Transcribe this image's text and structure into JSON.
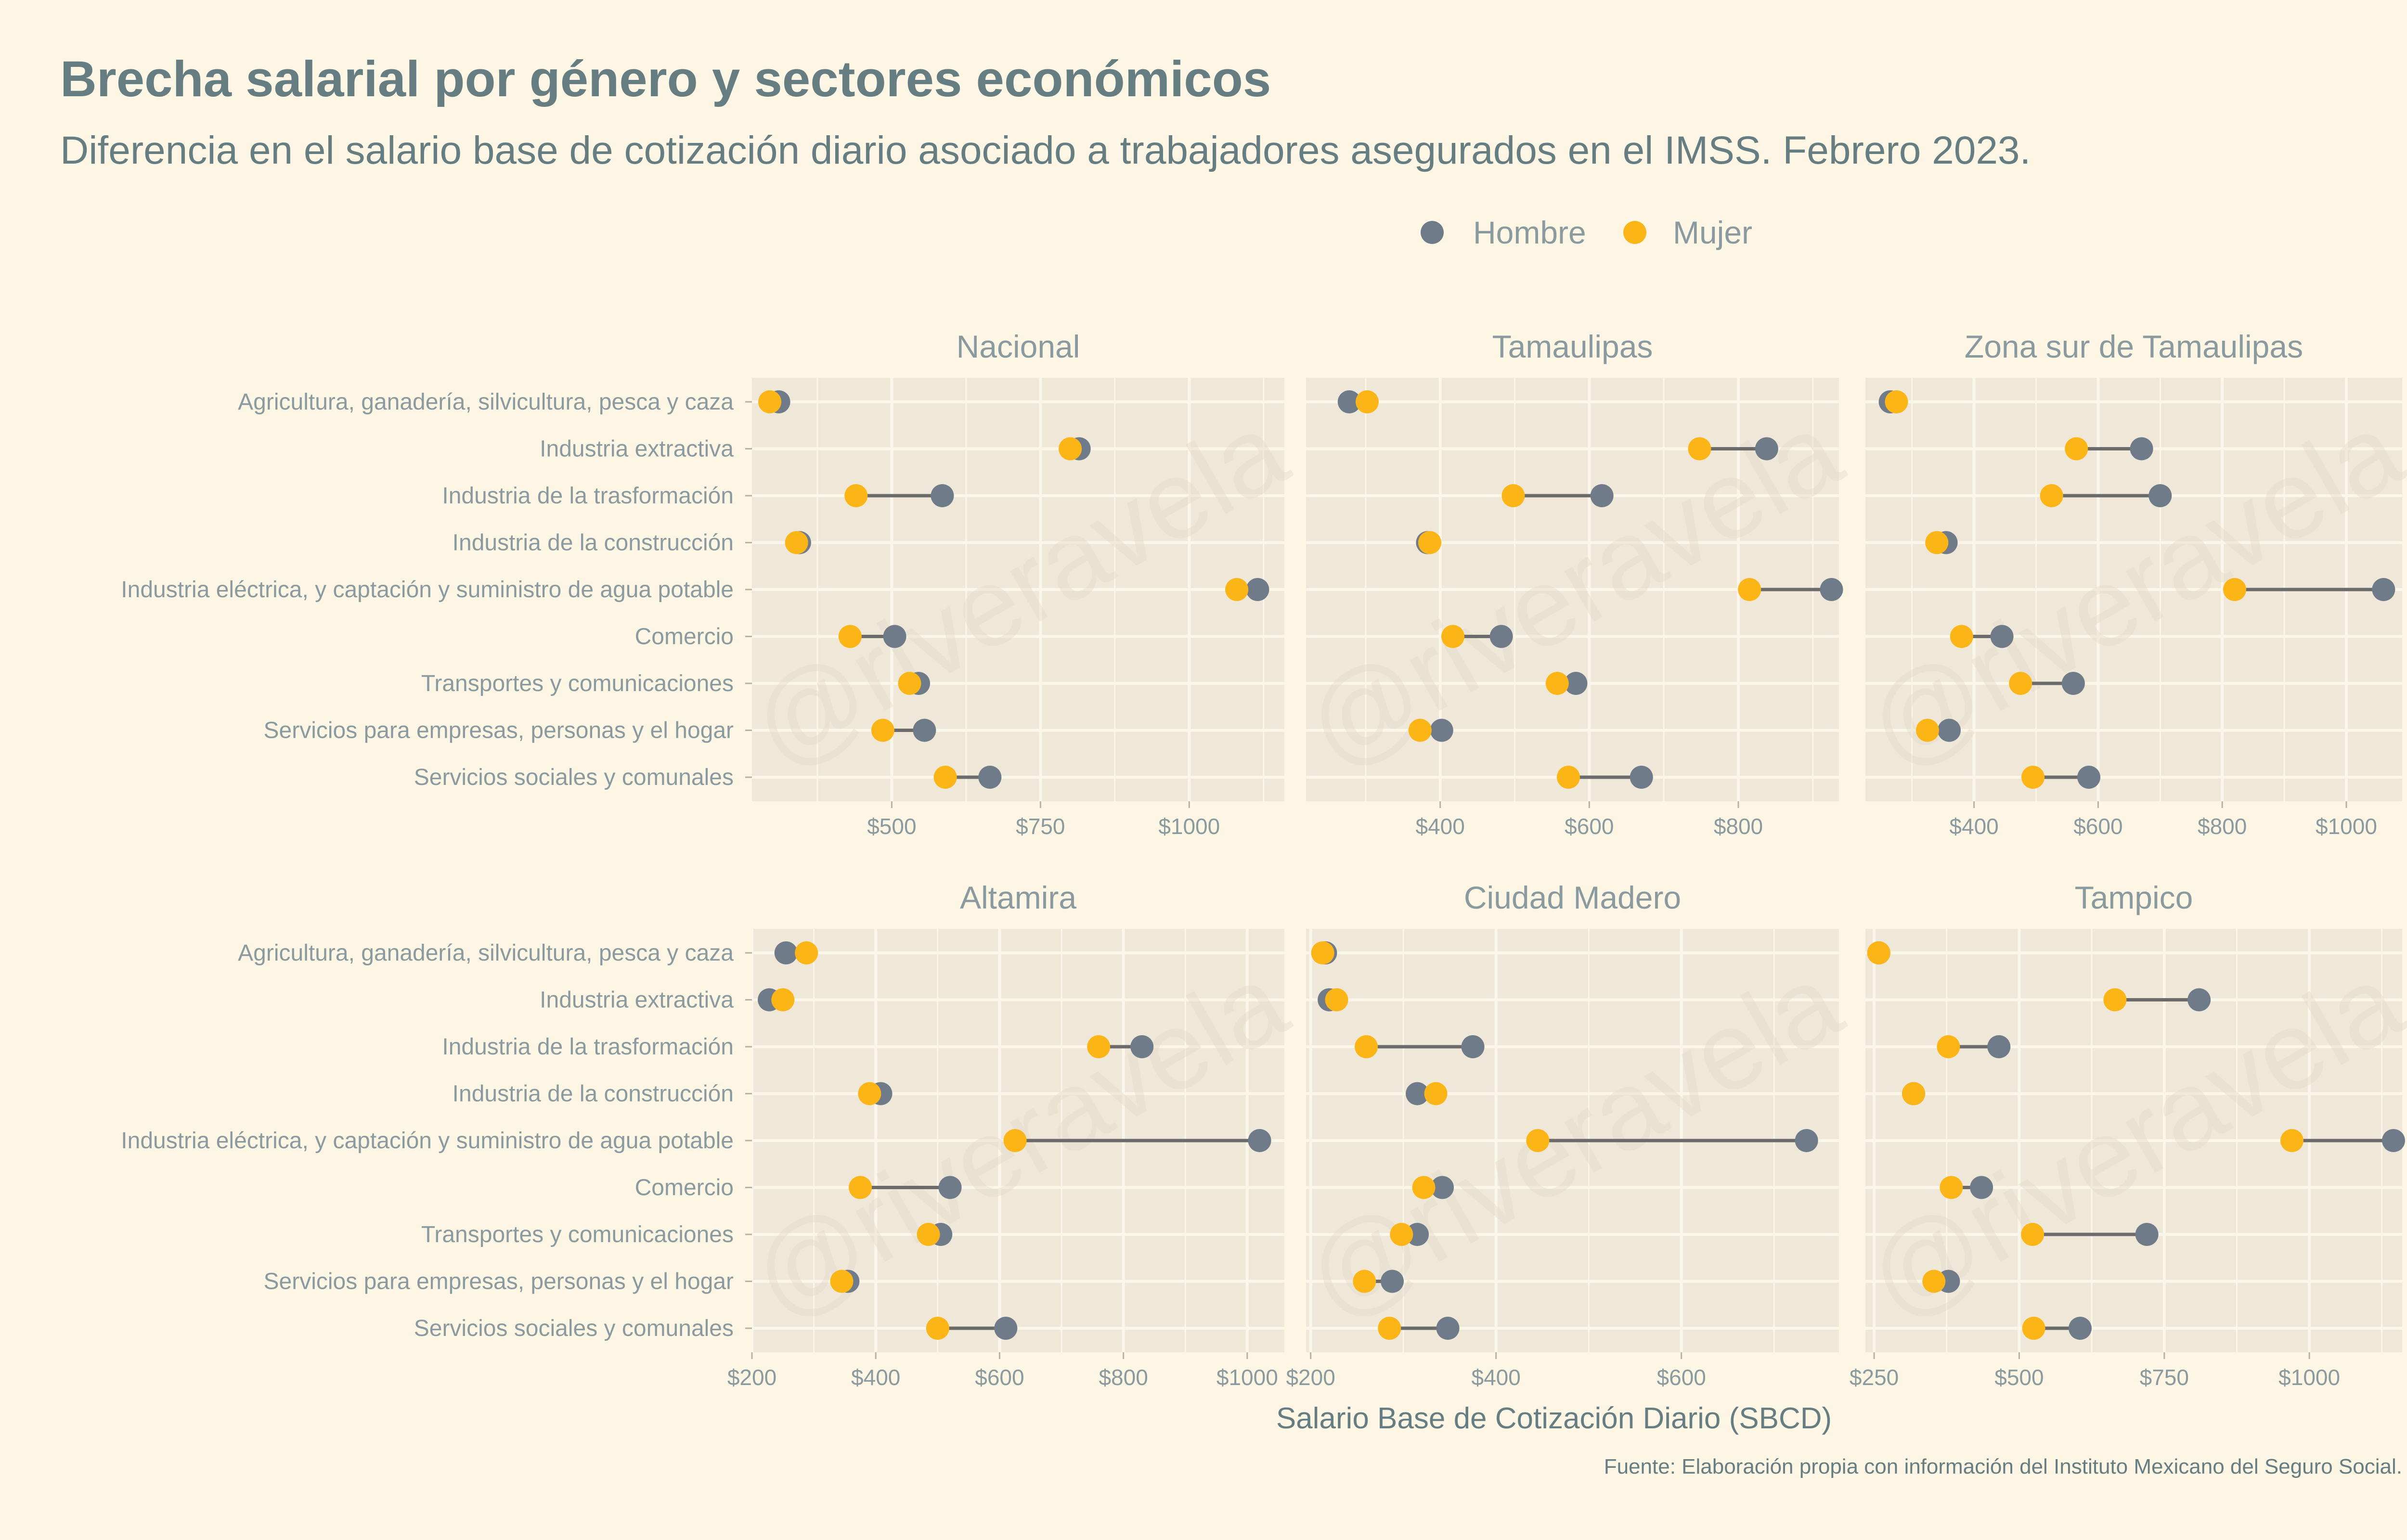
{
  "colors": {
    "background": "#fdf6e4",
    "panel": "#efe8d8",
    "grid": "#fbf6ea",
    "segment": "#6b6b6b",
    "hombre": "#707b8a",
    "mujer": "#fbb516",
    "text_dark": "#667d82",
    "text_light": "#8a9a9e"
  },
  "header": {
    "title": "Brecha salarial por género y sectores económicos",
    "subtitle": "Diferencia en el salario base de cotización diario asociado a trabajadores asegurados en el IMSS. Febrero 2023."
  },
  "legend": {
    "items": [
      {
        "label": "Hombre",
        "color": "#707b8a"
      },
      {
        "label": "Mujer",
        "color": "#fbb516"
      }
    ]
  },
  "watermark": "@riveravela",
  "xlabel": "Salario Base de Cotización Diario (SBCD)",
  "caption": "Fuente: Elaboración propia con información del Instituto Mexicano del Seguro Social.",
  "chart_data": {
    "type": "dumbbell",
    "categories": [
      "Agricultura, ganadería, silvicultura, pesca y caza",
      "Industria extractiva",
      "Industria de la trasformación",
      "Industria de la construcción",
      "Industria eléctrica, y captación y suministro de agua potable",
      "Comercio",
      "Transportes y comunicaciones",
      "Servicios para empresas, personas y el hogar",
      "Servicios sociales y comunales"
    ],
    "series_names": [
      "Hombre",
      "Mujer"
    ],
    "panels": [
      {
        "title": "Nacional",
        "xlim": [
          265,
          1160
        ],
        "ticks": [
          500,
          750,
          1000
        ],
        "tick_labels": [
          "$500",
          "$750",
          "$1000"
        ],
        "hombre": [
          310,
          815,
          585,
          345,
          1115,
          505,
          545,
          555,
          665
        ],
        "mujer": [
          295,
          800,
          440,
          340,
          1080,
          430,
          530,
          485,
          590
        ]
      },
      {
        "title": "Tamaulipas",
        "xlim": [
          220,
          935
        ],
        "ticks": [
          400,
          600,
          800
        ],
        "tick_labels": [
          "$400",
          "$600",
          "$800"
        ],
        "hombre": [
          278,
          838,
          617,
          383,
          925,
          482,
          582,
          402,
          670
        ],
        "mujer": [
          302,
          748,
          498,
          386,
          815,
          417,
          557,
          373,
          572
        ]
      },
      {
        "title": "Zona sur de Tamaulipas",
        "xlim": [
          225,
          1090
        ],
        "ticks": [
          400,
          600,
          800,
          1000
        ],
        "tick_labels": [
          "$400",
          "$600",
          "$800",
          "$1000"
        ],
        "hombre": [
          265,
          670,
          700,
          355,
          1060,
          445,
          560,
          360,
          585
        ],
        "mujer": [
          275,
          565,
          525,
          340,
          820,
          380,
          475,
          325,
          495
        ]
      },
      {
        "title": "Altamira",
        "xlim": [
          200,
          1060
        ],
        "ticks": [
          200,
          400,
          600,
          800,
          1000
        ],
        "tick_labels": [
          "$200",
          "$400",
          "$600",
          "$800",
          "$1000"
        ],
        "hombre": [
          255,
          228,
          830,
          408,
          1020,
          520,
          505,
          355,
          610
        ],
        "mujer": [
          288,
          250,
          760,
          390,
          625,
          375,
          485,
          345,
          500
        ]
      },
      {
        "title": "Ciudad Madero",
        "xlim": [
          195,
          770
        ],
        "ticks": [
          200,
          400,
          600
        ],
        "tick_labels": [
          "$200",
          "$400",
          "$600"
        ],
        "hombre": [
          216,
          220,
          375,
          315,
          735,
          342,
          315,
          288,
          348
        ],
        "mujer": [
          213,
          228,
          260,
          335,
          445,
          322,
          298,
          258,
          285
        ]
      },
      {
        "title": "Tampico",
        "xlim": [
          235,
          1160
        ],
        "ticks": [
          250,
          500,
          750,
          1000
        ],
        "tick_labels": [
          "$250",
          "$500",
          "$750",
          "$1000"
        ],
        "hombre": [
          258,
          810,
          465,
          318,
          1145,
          435,
          720,
          378,
          605
        ],
        "mujer": [
          258,
          665,
          378,
          318,
          970,
          383,
          523,
          353,
          525
        ]
      }
    ]
  }
}
